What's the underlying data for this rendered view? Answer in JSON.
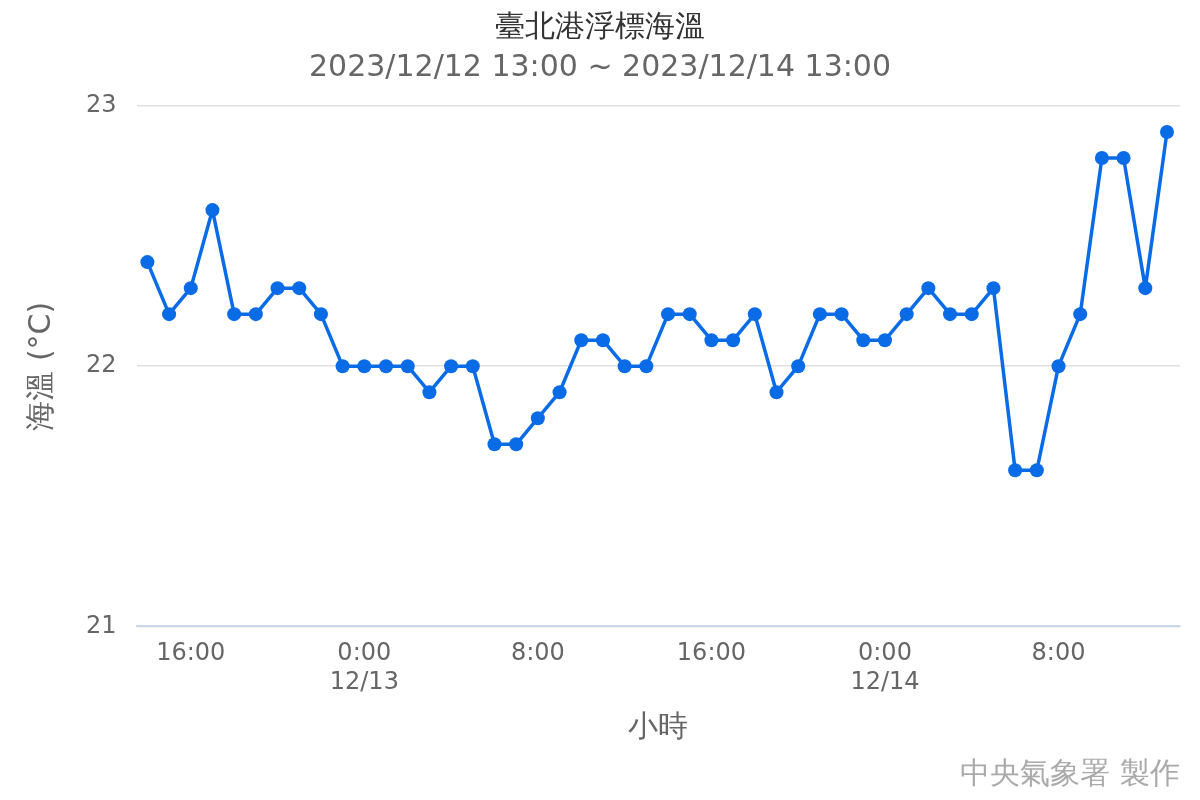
{
  "chart_data": {
    "type": "line",
    "title": "臺北港浮標海溫",
    "subtitle": "2023/12/12 13:00 ~ 2023/12/14 13:00",
    "xlabel": "小時",
    "ylabel": "海溫 (°C)",
    "x": [
      "2023-12-12T14:00",
      "2023-12-12T15:00",
      "2023-12-12T16:00",
      "2023-12-12T17:00",
      "2023-12-12T18:00",
      "2023-12-12T19:00",
      "2023-12-12T20:00",
      "2023-12-12T21:00",
      "2023-12-12T22:00",
      "2023-12-12T23:00",
      "2023-12-13T00:00",
      "2023-12-13T01:00",
      "2023-12-13T02:00",
      "2023-12-13T03:00",
      "2023-12-13T04:00",
      "2023-12-13T05:00",
      "2023-12-13T06:00",
      "2023-12-13T07:00",
      "2023-12-13T08:00",
      "2023-12-13T09:00",
      "2023-12-13T10:00",
      "2023-12-13T11:00",
      "2023-12-13T12:00",
      "2023-12-13T13:00",
      "2023-12-13T14:00",
      "2023-12-13T15:00",
      "2023-12-13T16:00",
      "2023-12-13T17:00",
      "2023-12-13T18:00",
      "2023-12-13T19:00",
      "2023-12-13T20:00",
      "2023-12-13T21:00",
      "2023-12-13T22:00",
      "2023-12-13T23:00",
      "2023-12-14T00:00",
      "2023-12-14T01:00",
      "2023-12-14T02:00",
      "2023-12-14T03:00",
      "2023-12-14T04:00",
      "2023-12-14T05:00",
      "2023-12-14T06:00",
      "2023-12-14T07:00",
      "2023-12-14T08:00",
      "2023-12-14T09:00",
      "2023-12-14T10:00",
      "2023-12-14T11:00",
      "2023-12-14T12:00",
      "2023-12-14T13:00"
    ],
    "series": [
      {
        "color": "#0a6be6",
        "values": [
          22.4,
          22.2,
          22.3,
          22.6,
          22.2,
          22.2,
          22.3,
          22.3,
          22.2,
          22.0,
          22.0,
          22.0,
          22.0,
          21.9,
          22.0,
          22.0,
          21.7,
          21.7,
          21.8,
          21.9,
          22.1,
          22.1,
          22.0,
          22.0,
          22.2,
          22.2,
          22.1,
          22.1,
          22.2,
          21.9,
          22.0,
          22.2,
          22.2,
          22.1,
          22.1,
          22.2,
          22.3,
          22.2,
          22.2,
          22.3,
          21.6,
          21.6,
          22.0,
          22.2,
          22.8,
          22.8,
          22.3,
          22.9
        ]
      }
    ],
    "xlim": [
      "2023-12-12T13:30",
      "2023-12-14T13:36"
    ],
    "xticks": [
      {
        "value": "2023-12-12T16:00",
        "label": "16:00"
      },
      {
        "value": "2023-12-13T00:00",
        "label": "0:00\n12/13"
      },
      {
        "value": "2023-12-13T08:00",
        "label": "8:00"
      },
      {
        "value": "2023-12-13T16:00",
        "label": "16:00"
      },
      {
        "value": "2023-12-14T00:00",
        "label": "0:00\n12/14"
      },
      {
        "value": "2023-12-14T08:00",
        "label": "8:00"
      }
    ],
    "ylim": [
      21,
      23
    ],
    "yticks": [
      21,
      22,
      23
    ],
    "grid": "y",
    "legend": false,
    "marker": "circle",
    "line_style": "solid",
    "annotations": [
      "中央氣象署 製作"
    ]
  }
}
